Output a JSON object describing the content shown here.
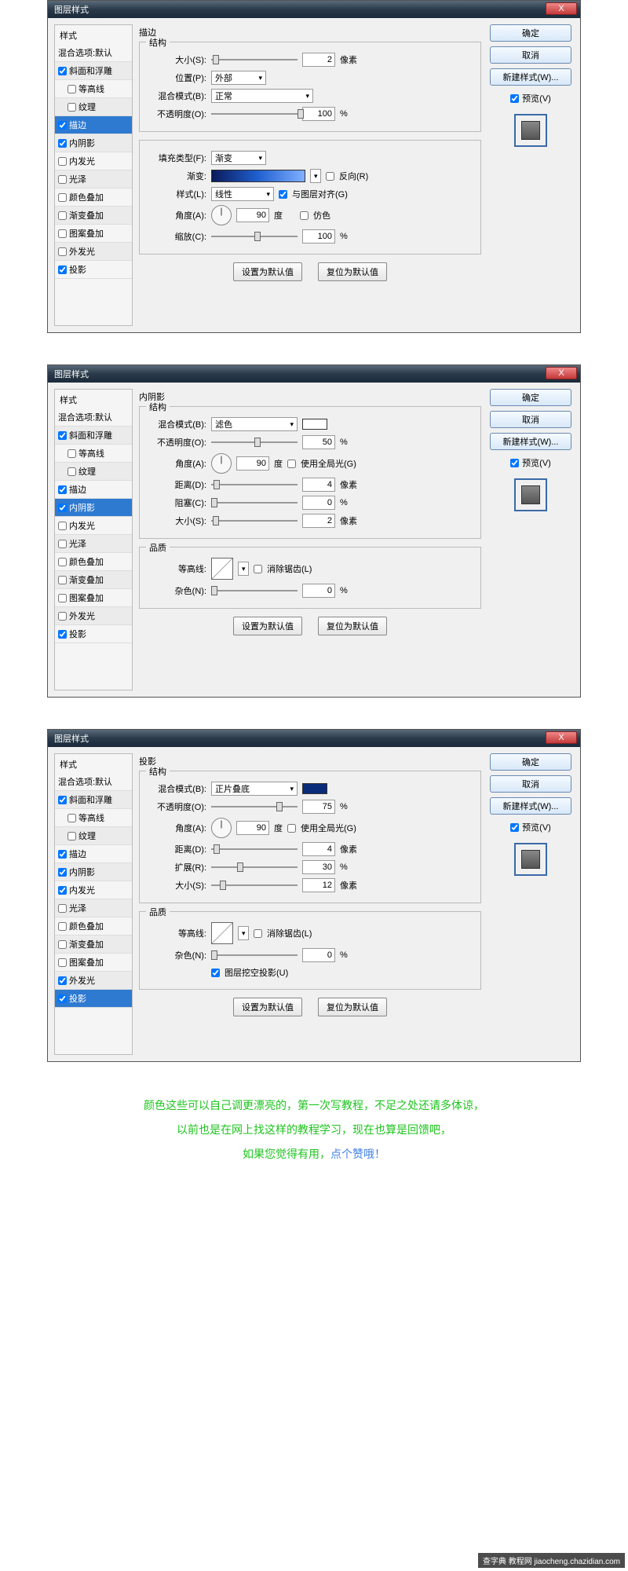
{
  "dialog_title": "图层样式",
  "close_x": "X",
  "styles_header": "样式",
  "blend_default": "混合选项:默认",
  "style_items": [
    "斜面和浮雕",
    "等高线",
    "纹理",
    "描边",
    "内阴影",
    "内发光",
    "光泽",
    "颜色叠加",
    "渐变叠加",
    "图案叠加",
    "外发光",
    "投影"
  ],
  "right": {
    "ok": "确定",
    "cancel": "取消",
    "new_style": "新建样式(W)...",
    "preview": "预览(V)"
  },
  "d1": {
    "title": "描边",
    "selected_idx": 3,
    "checks": [
      true,
      false,
      false,
      true,
      true,
      false,
      false,
      false,
      false,
      false,
      false,
      true
    ],
    "structure": "结构",
    "size": "大小(S):",
    "size_val": "2",
    "size_unit": "像素",
    "position": "位置(P):",
    "position_val": "外部",
    "blend_mode": "混合模式(B):",
    "blend_mode_val": "正常",
    "opacity": "不透明度(O):",
    "opacity_val": "100",
    "pct": "%",
    "fill_type": "填充类型(F):",
    "fill_type_val": "渐变",
    "gradient": "渐变:",
    "reverse": "反向(R)",
    "style_l": "样式(L):",
    "style_l_val": "线性",
    "align": "与图层对齐(G)",
    "angle": "角度(A):",
    "angle_val": "90",
    "deg": "度",
    "dither": "仿色",
    "scale": "缩放(C):",
    "scale_val": "100",
    "set_default": "设置为默认值",
    "reset_default": "复位为默认值",
    "gradient_css": "linear-gradient(to right,#0a1a5a,#2060d0,#80b0ff)"
  },
  "d2": {
    "title": "内阴影",
    "selected_idx": 4,
    "checks": [
      true,
      false,
      false,
      true,
      true,
      false,
      false,
      false,
      false,
      false,
      false,
      true
    ],
    "structure": "结构",
    "blend_mode": "混合模式(B):",
    "blend_mode_val": "滤色",
    "opacity": "不透明度(O):",
    "opacity_val": "50",
    "pct": "%",
    "angle": "角度(A):",
    "angle_val": "90",
    "deg": "度",
    "global": "使用全局光(G)",
    "distance": "距离(D):",
    "distance_val": "4",
    "px": "像素",
    "choke": "阻塞(C):",
    "choke_val": "0",
    "size": "大小(S):",
    "size_val": "2",
    "quality": "品质",
    "contour": "等高线:",
    "antialias": "消除锯齿(L)",
    "noise": "杂色(N):",
    "noise_val": "0",
    "set_default": "设置为默认值",
    "reset_default": "复位为默认值",
    "color_swatch": "#ffffff"
  },
  "d3": {
    "title": "投影",
    "selected_idx": 11,
    "checks": [
      true,
      false,
      false,
      true,
      true,
      true,
      false,
      false,
      false,
      false,
      true,
      true
    ],
    "structure": "结构",
    "blend_mode": "混合模式(B):",
    "blend_mode_val": "正片叠底",
    "opacity": "不透明度(O):",
    "opacity_val": "75",
    "pct": "%",
    "angle": "角度(A):",
    "angle_val": "90",
    "deg": "度",
    "global": "使用全局光(G)",
    "distance": "距离(D):",
    "distance_val": "4",
    "px": "像素",
    "spread": "扩展(R):",
    "spread_val": "30",
    "size": "大小(S):",
    "size_val": "12",
    "quality": "品质",
    "contour": "等高线:",
    "antialias": "消除锯齿(L)",
    "noise": "杂色(N):",
    "noise_val": "0",
    "knockout": "图层挖空投影(U)",
    "set_default": "设置为默认值",
    "reset_default": "复位为默认值",
    "color_swatch": "#0a2a7a"
  },
  "footer": {
    "l1": "颜色这些可以自己调更漂亮的，第一次写教程，不足之处还请多体谅，",
    "l2": "以前也是在网上找这样的教程学习，现在也算是回馈吧，",
    "l3a": "如果您觉得有用，",
    "l3b": "点个赞哦！"
  },
  "watermark": "查字典 教程网  jiaocheng.chazidian.com"
}
